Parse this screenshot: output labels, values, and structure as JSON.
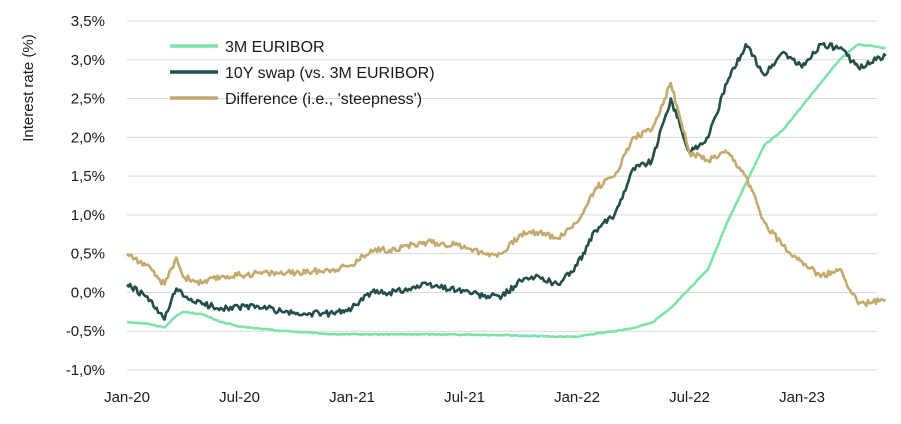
{
  "chart_data": {
    "type": "line",
    "title": "",
    "xlabel": "",
    "ylabel": "Interest rate (%)",
    "ylim": [
      -1.0,
      3.5
    ],
    "yticks": [
      "-1,0%",
      "-0,5%",
      "0,0%",
      "0,5%",
      "1,0%",
      "1,5%",
      "2,0%",
      "2,5%",
      "3,0%",
      "3,5%"
    ],
    "xticks": [
      "Jan-20",
      "Jul-20",
      "Jan-21",
      "Jul-21",
      "Jan-22",
      "Jul-22",
      "Jan-23"
    ],
    "xrange": [
      "2020-01",
      "2023-06"
    ],
    "grid": "horizontal",
    "legend_position": "top-left",
    "series": [
      {
        "name": "3M EURIBOR",
        "color": "#7ee3a8",
        "points": [
          [
            "2020-01",
            -0.38
          ],
          [
            "2020-02",
            -0.4
          ],
          [
            "2020-03",
            -0.45
          ],
          [
            "2020-03-20",
            -0.3
          ],
          [
            "2020-04",
            -0.25
          ],
          [
            "2020-05",
            -0.28
          ],
          [
            "2020-06",
            -0.38
          ],
          [
            "2020-07",
            -0.44
          ],
          [
            "2020-09",
            -0.49
          ],
          [
            "2020-12",
            -0.54
          ],
          [
            "2021-03",
            -0.54
          ],
          [
            "2021-06",
            -0.54
          ],
          [
            "2021-09",
            -0.55
          ],
          [
            "2021-12",
            -0.57
          ],
          [
            "2022-01",
            -0.57
          ],
          [
            "2022-02",
            -0.53
          ],
          [
            "2022-03",
            -0.5
          ],
          [
            "2022-04",
            -0.46
          ],
          [
            "2022-05",
            -0.39
          ],
          [
            "2022-06",
            -0.2
          ],
          [
            "2022-07",
            0.05
          ],
          [
            "2022-08",
            0.3
          ],
          [
            "2022-09",
            0.9
          ],
          [
            "2022-10",
            1.4
          ],
          [
            "2022-11",
            1.9
          ],
          [
            "2022-12",
            2.1
          ],
          [
            "2023-01",
            2.4
          ],
          [
            "2023-02",
            2.7
          ],
          [
            "2023-03",
            3.0
          ],
          [
            "2023-04",
            3.2
          ],
          [
            "2023-05-15",
            3.15
          ]
        ]
      },
      {
        "name": "10Y swap (vs. 3M EURIBOR)",
        "color": "#234f4a",
        "points": [
          [
            "2020-01",
            0.1
          ],
          [
            "2020-02",
            -0.05
          ],
          [
            "2020-03",
            -0.35
          ],
          [
            "2020-03-20",
            0.05
          ],
          [
            "2020-04",
            -0.05
          ],
          [
            "2020-05",
            -0.15
          ],
          [
            "2020-06",
            -0.2
          ],
          [
            "2020-08",
            -0.18
          ],
          [
            "2020-10",
            -0.28
          ],
          [
            "2020-12",
            -0.27
          ],
          [
            "2021-01",
            -0.2
          ],
          [
            "2021-02",
            0.0
          ],
          [
            "2021-03",
            0.0
          ],
          [
            "2021-05",
            0.1
          ],
          [
            "2021-07",
            0.02
          ],
          [
            "2021-08",
            -0.05
          ],
          [
            "2021-09",
            -0.05
          ],
          [
            "2021-10",
            0.15
          ],
          [
            "2021-11",
            0.2
          ],
          [
            "2021-12",
            0.1
          ],
          [
            "2022-01",
            0.35
          ],
          [
            "2022-02",
            0.8
          ],
          [
            "2022-03",
            1.0
          ],
          [
            "2022-04",
            1.6
          ],
          [
            "2022-05",
            1.7
          ],
          [
            "2022-06",
            2.5
          ],
          [
            "2022-07",
            1.8
          ],
          [
            "2022-08",
            2.0
          ],
          [
            "2022-09",
            2.7
          ],
          [
            "2022-10",
            3.2
          ],
          [
            "2022-11",
            2.8
          ],
          [
            "2022-12",
            3.1
          ],
          [
            "2023-01",
            2.9
          ],
          [
            "2023-02",
            3.2
          ],
          [
            "2023-03",
            3.15
          ],
          [
            "2023-04",
            2.9
          ],
          [
            "2023-05-15",
            3.05
          ]
        ]
      },
      {
        "name": "Difference (i.e., 'steepness')",
        "color": "#c6a96c",
        "points": [
          [
            "2020-01",
            0.5
          ],
          [
            "2020-02",
            0.35
          ],
          [
            "2020-03",
            0.1
          ],
          [
            "2020-03-20",
            0.45
          ],
          [
            "2020-04",
            0.2
          ],
          [
            "2020-05",
            0.12
          ],
          [
            "2020-06",
            0.2
          ],
          [
            "2020-08",
            0.25
          ],
          [
            "2020-10",
            0.25
          ],
          [
            "2020-12",
            0.3
          ],
          [
            "2021-01",
            0.35
          ],
          [
            "2021-02",
            0.55
          ],
          [
            "2021-03",
            0.55
          ],
          [
            "2021-05",
            0.65
          ],
          [
            "2021-07",
            0.6
          ],
          [
            "2021-08",
            0.5
          ],
          [
            "2021-09",
            0.5
          ],
          [
            "2021-10",
            0.75
          ],
          [
            "2021-11",
            0.78
          ],
          [
            "2021-12",
            0.7
          ],
          [
            "2022-01",
            0.9
          ],
          [
            "2022-02",
            1.35
          ],
          [
            "2022-03",
            1.5
          ],
          [
            "2022-04",
            2.0
          ],
          [
            "2022-05",
            2.1
          ],
          [
            "2022-06",
            2.7
          ],
          [
            "2022-07",
            1.8
          ],
          [
            "2022-08",
            1.7
          ],
          [
            "2022-09",
            1.8
          ],
          [
            "2022-10",
            1.5
          ],
          [
            "2022-11",
            0.9
          ],
          [
            "2022-12",
            0.6
          ],
          [
            "2023-01",
            0.4
          ],
          [
            "2023-02",
            0.2
          ],
          [
            "2023-03",
            0.3
          ],
          [
            "2023-04",
            -0.15
          ],
          [
            "2023-05-15",
            -0.1
          ]
        ]
      }
    ]
  }
}
